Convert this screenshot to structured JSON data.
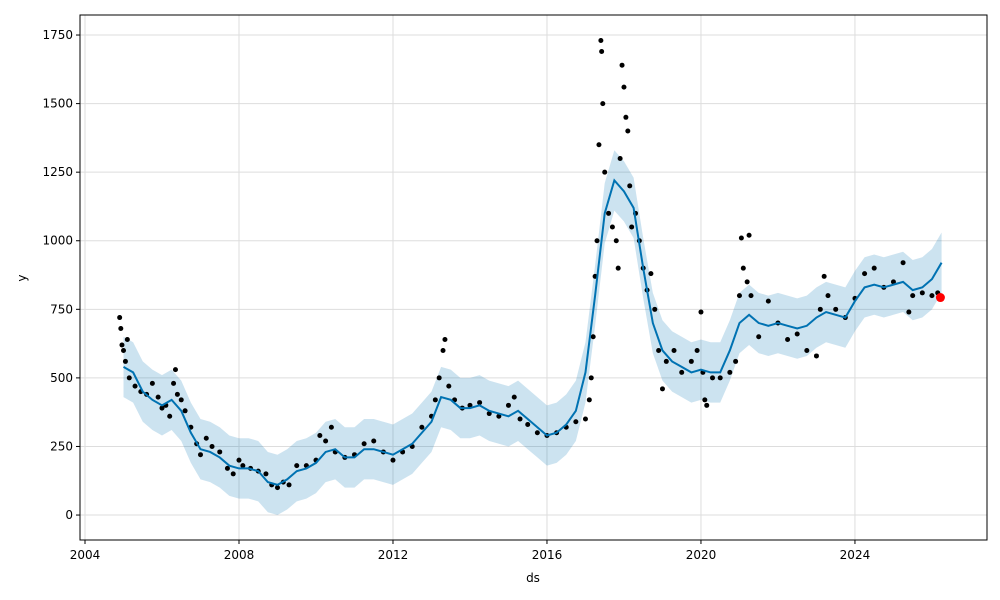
{
  "chart_data": {
    "type": "forecast",
    "x_label": "ds",
    "y_label": "y",
    "xlim": [
      2003.87,
      2027.43
    ],
    "xticks": [
      2004,
      2008,
      2012,
      2016,
      2020,
      2024
    ],
    "ylim": [
      -91,
      1823
    ],
    "yticks": [
      0,
      250,
      500,
      750,
      1000,
      1250,
      1500,
      1750
    ],
    "grid": true,
    "forecast": {
      "color": "#0072b2",
      "band_color": "#0072b2",
      "x": [
        2005,
        2005.25,
        2005.5,
        2005.75,
        2006,
        2006.25,
        2006.5,
        2006.75,
        2007,
        2007.25,
        2007.5,
        2007.75,
        2008,
        2008.25,
        2008.5,
        2008.75,
        2009,
        2009.25,
        2009.5,
        2009.75,
        2010,
        2010.25,
        2010.5,
        2010.75,
        2011,
        2011.25,
        2011.5,
        2011.75,
        2012,
        2012.25,
        2012.5,
        2012.75,
        2013,
        2013.25,
        2013.5,
        2013.75,
        2014,
        2014.25,
        2014.5,
        2014.75,
        2015,
        2015.25,
        2015.5,
        2015.75,
        2016,
        2016.25,
        2016.5,
        2016.75,
        2017,
        2017.25,
        2017.5,
        2017.75,
        2018,
        2018.25,
        2018.5,
        2018.75,
        2019,
        2019.25,
        2019.5,
        2019.75,
        2020,
        2020.25,
        2020.5,
        2020.75,
        2021,
        2021.25,
        2021.5,
        2021.75,
        2022,
        2022.25,
        2022.5,
        2022.75,
        2023,
        2023.25,
        2023.5,
        2023.75,
        2024,
        2024.25,
        2024.5,
        2024.75,
        2025,
        2025.25,
        2025.5,
        2025.75,
        2026,
        2026.25
      ],
      "values": [
        540,
        520,
        450,
        420,
        400,
        420,
        380,
        300,
        240,
        230,
        210,
        180,
        170,
        170,
        160,
        120,
        110,
        130,
        160,
        170,
        190,
        230,
        240,
        210,
        210,
        240,
        240,
        230,
        220,
        240,
        260,
        300,
        340,
        430,
        420,
        390,
        390,
        400,
        380,
        370,
        360,
        380,
        350,
        320,
        290,
        300,
        330,
        380,
        520,
        800,
        1100,
        1220,
        1180,
        1120,
        900,
        700,
        600,
        560,
        540,
        520,
        530,
        520,
        520,
        600,
        700,
        730,
        700,
        690,
        700,
        690,
        680,
        690,
        720,
        740,
        730,
        720,
        780,
        830,
        840,
        830,
        840,
        850,
        820,
        830,
        860,
        920
      ],
      "lower": [
        430,
        410,
        340,
        310,
        290,
        310,
        270,
        190,
        130,
        120,
        100,
        70,
        60,
        60,
        50,
        10,
        0,
        20,
        50,
        60,
        80,
        120,
        130,
        100,
        100,
        130,
        130,
        120,
        110,
        130,
        150,
        190,
        230,
        320,
        310,
        280,
        280,
        290,
        270,
        260,
        250,
        270,
        240,
        210,
        180,
        190,
        220,
        270,
        410,
        690,
        990,
        1110,
        1070,
        1010,
        790,
        590,
        490,
        450,
        430,
        410,
        420,
        410,
        410,
        490,
        590,
        620,
        590,
        580,
        590,
        580,
        570,
        580,
        610,
        630,
        620,
        610,
        670,
        720,
        730,
        720,
        730,
        740,
        710,
        720,
        750,
        810
      ],
      "upper": [
        650,
        630,
        560,
        530,
        510,
        530,
        490,
        410,
        350,
        340,
        320,
        290,
        280,
        280,
        270,
        230,
        220,
        240,
        270,
        280,
        300,
        340,
        350,
        320,
        320,
        350,
        350,
        340,
        330,
        350,
        370,
        410,
        450,
        540,
        530,
        500,
        500,
        510,
        490,
        480,
        470,
        490,
        460,
        430,
        400,
        410,
        440,
        490,
        630,
        910,
        1210,
        1330,
        1290,
        1230,
        1010,
        810,
        710,
        670,
        650,
        630,
        640,
        630,
        630,
        710,
        810,
        840,
        810,
        800,
        810,
        800,
        790,
        800,
        830,
        850,
        840,
        830,
        890,
        940,
        950,
        940,
        950,
        960,
        930,
        940,
        970,
        1030
      ]
    },
    "observed": {
      "color": "#000000",
      "x": [
        2004.9,
        2004.93,
        2004.96,
        2005,
        2005.05,
        2005.1,
        2005.15,
        2005.3,
        2005.45,
        2005.6,
        2005.75,
        2005.9,
        2006,
        2006.1,
        2006.2,
        2006.3,
        2006.35,
        2006.4,
        2006.5,
        2006.6,
        2006.75,
        2006.9,
        2007,
        2007.15,
        2007.3,
        2007.5,
        2007.7,
        2007.85,
        2008,
        2008.1,
        2008.3,
        2008.5,
        2008.7,
        2008.85,
        2009,
        2009.15,
        2009.3,
        2009.5,
        2009.75,
        2010,
        2010.1,
        2010.25,
        2010.4,
        2010.5,
        2010.75,
        2011,
        2011.25,
        2011.5,
        2011.75,
        2012,
        2012.25,
        2012.5,
        2012.75,
        2013,
        2013.1,
        2013.2,
        2013.3,
        2013.35,
        2013.45,
        2013.6,
        2013.8,
        2014,
        2014.25,
        2014.5,
        2014.75,
        2015,
        2015.15,
        2015.3,
        2015.5,
        2015.75,
        2016,
        2016.25,
        2016.5,
        2016.75,
        2017,
        2017.1,
        2017.15,
        2017.2,
        2017.25,
        2017.3,
        2017.35,
        2017.4,
        2017.42,
        2017.45,
        2017.5,
        2017.6,
        2017.7,
        2017.8,
        2017.85,
        2017.9,
        2017.95,
        2018,
        2018.05,
        2018.1,
        2018.15,
        2018.2,
        2018.3,
        2018.4,
        2018.5,
        2018.6,
        2018.7,
        2018.8,
        2018.9,
        2019,
        2019.1,
        2019.3,
        2019.5,
        2019.75,
        2019.9,
        2020,
        2020.05,
        2020.1,
        2020.15,
        2020.3,
        2020.5,
        2020.75,
        2020.9,
        2021,
        2021.05,
        2021.1,
        2021.2,
        2021.25,
        2021.3,
        2021.5,
        2021.75,
        2022,
        2022.25,
        2022.5,
        2022.75,
        2023,
        2023.1,
        2023.2,
        2023.3,
        2023.5,
        2023.75,
        2024,
        2024.25,
        2024.5,
        2024.75,
        2025,
        2025.25,
        2025.4,
        2025.5,
        2025.75,
        2026,
        2026.15
      ],
      "values": [
        720,
        680,
        620,
        600,
        560,
        640,
        500,
        470,
        450,
        440,
        480,
        430,
        390,
        400,
        360,
        480,
        530,
        440,
        420,
        380,
        320,
        260,
        220,
        280,
        250,
        230,
        170,
        150,
        200,
        180,
        170,
        160,
        150,
        110,
        100,
        120,
        110,
        180,
        180,
        200,
        290,
        270,
        320,
        230,
        210,
        220,
        260,
        270,
        230,
        200,
        230,
        250,
        320,
        360,
        420,
        500,
        600,
        640,
        470,
        420,
        390,
        400,
        410,
        370,
        360,
        400,
        430,
        350,
        330,
        300,
        290,
        300,
        320,
        340,
        350,
        420,
        500,
        650,
        870,
        1000,
        1350,
        1730,
        1690,
        1500,
        1250,
        1100,
        1050,
        1000,
        900,
        1300,
        1640,
        1560,
        1450,
        1400,
        1200,
        1050,
        1100,
        1000,
        900,
        820,
        880,
        750,
        600,
        460,
        560,
        600,
        520,
        560,
        600,
        740,
        520,
        420,
        400,
        500,
        500,
        520,
        560,
        800,
        1010,
        900,
        850,
        1020,
        800,
        650,
        780,
        700,
        640,
        660,
        600,
        580,
        750,
        870,
        800,
        750,
        720,
        790,
        880,
        900,
        830,
        850,
        920,
        740,
        800,
        810,
        800,
        810
      ]
    },
    "highlight": {
      "color": "#ff0000",
      "x": [
        2026.22
      ],
      "values": [
        793
      ]
    }
  }
}
